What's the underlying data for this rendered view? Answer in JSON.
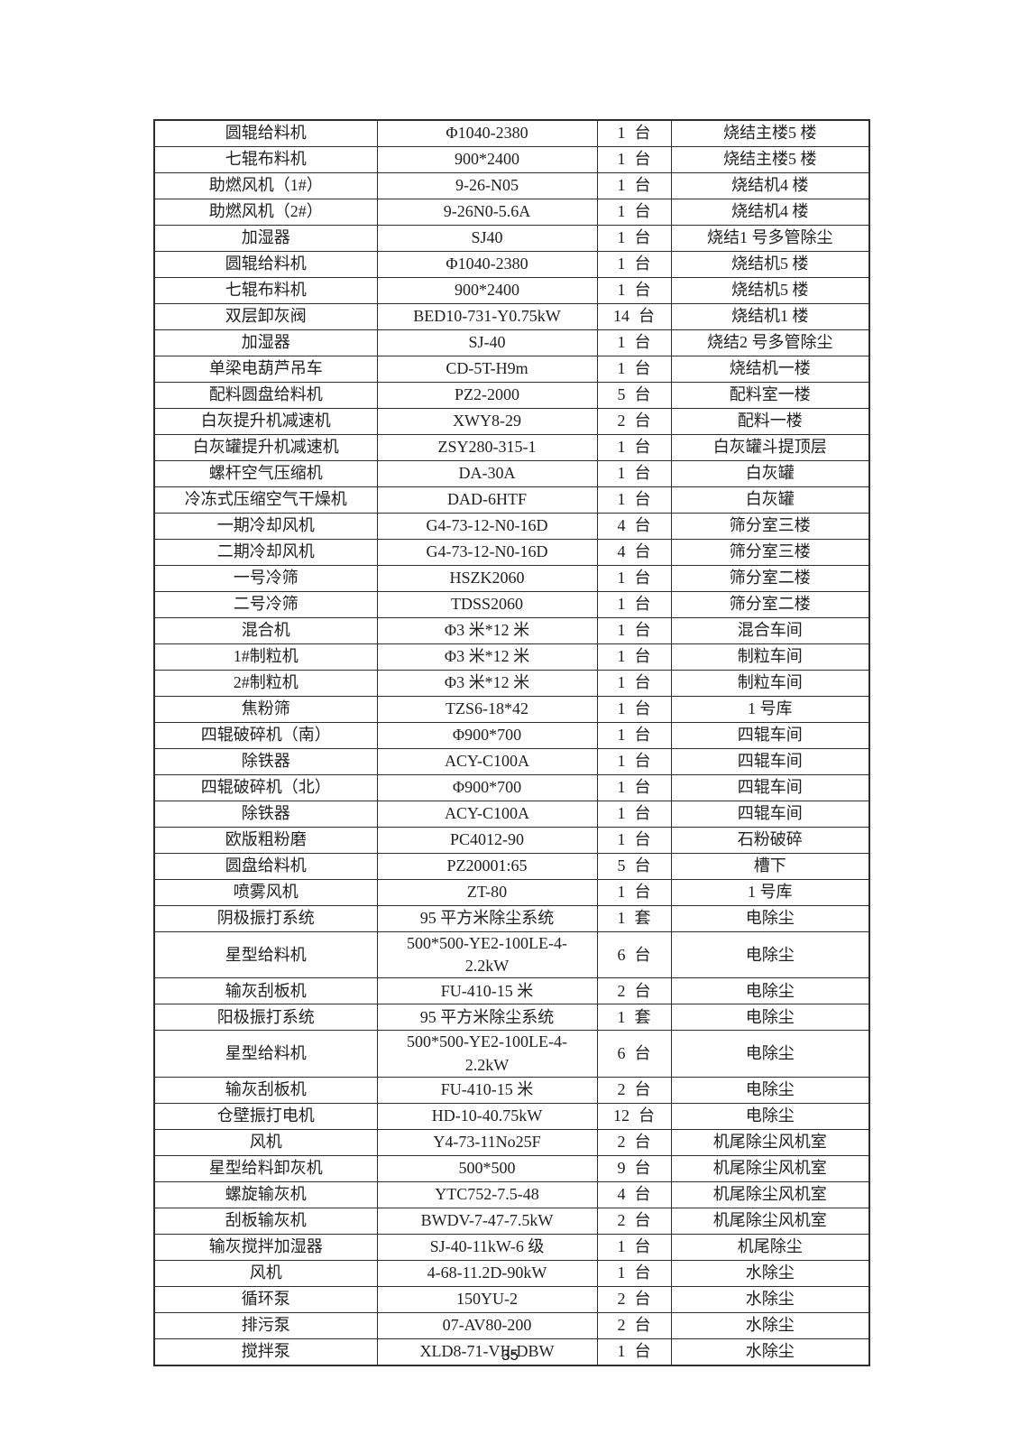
{
  "page": {
    "number": "35"
  },
  "table": {
    "rows": [
      {
        "name": "圆辊给料机",
        "model": "Φ1040-2380",
        "qty": "1",
        "unit": "台",
        "location": "烧结主楼5 楼"
      },
      {
        "name": "七辊布料机",
        "model": "900*2400",
        "qty": "1",
        "unit": "台",
        "location": "烧结主楼5 楼"
      },
      {
        "name": "助燃风机（1#）",
        "model": "9-26-N05",
        "qty": "1",
        "unit": "台",
        "location": "烧结机4 楼"
      },
      {
        "name": "助燃风机（2#）",
        "model": "9-26N0-5.6A",
        "qty": "1",
        "unit": "台",
        "location": "烧结机4 楼"
      },
      {
        "name": "加湿器",
        "model": "SJ40",
        "qty": "1",
        "unit": "台",
        "location": "烧结1 号多管除尘"
      },
      {
        "name": "圆辊给料机",
        "model": "Φ1040-2380",
        "qty": "1",
        "unit": "台",
        "location": "烧结机5 楼"
      },
      {
        "name": "七辊布料机",
        "model": "900*2400",
        "qty": "1",
        "unit": "台",
        "location": "烧结机5 楼"
      },
      {
        "name": "双层卸灰阀",
        "model": "BED10-731-Y0.75kW",
        "qty": "14",
        "unit": "台",
        "location": "烧结机1 楼"
      },
      {
        "name": "加湿器",
        "model": "SJ-40",
        "qty": "1",
        "unit": "台",
        "location": "烧结2 号多管除尘"
      },
      {
        "name": "单梁电葫芦吊车",
        "model": "CD-5T-H9m",
        "qty": "1",
        "unit": "台",
        "location": "烧结机一楼"
      },
      {
        "name": "配料圆盘给料机",
        "model": "PZ2-2000",
        "qty": "5",
        "unit": "台",
        "location": "配料室一楼"
      },
      {
        "name": "白灰提升机减速机",
        "model": "XWY8-29",
        "qty": "2",
        "unit": "台",
        "location": "配料一楼"
      },
      {
        "name": "白灰罐提升机减速机",
        "model": "ZSY280-315-1",
        "qty": "1",
        "unit": "台",
        "location": "白灰罐斗提顶层"
      },
      {
        "name": "螺杆空气压缩机",
        "model": "DA-30A",
        "qty": "1",
        "unit": "台",
        "location": "白灰罐"
      },
      {
        "name": "冷冻式压缩空气干燥机",
        "model": "DAD-6HTF",
        "qty": "1",
        "unit": "台",
        "location": "白灰罐"
      },
      {
        "name": "一期冷却风机",
        "model": "G4-73-12-N0-16D",
        "qty": "4",
        "unit": "台",
        "location": "筛分室三楼"
      },
      {
        "name": "二期冷却风机",
        "model": "G4-73-12-N0-16D",
        "qty": "4",
        "unit": "台",
        "location": "筛分室三楼"
      },
      {
        "name": "一号冷筛",
        "model": "HSZK2060",
        "qty": "1",
        "unit": "台",
        "location": "筛分室二楼"
      },
      {
        "name": "二号冷筛",
        "model": "TDSS2060",
        "qty": "1",
        "unit": "台",
        "location": "筛分室二楼"
      },
      {
        "name": "混合机",
        "model": "Φ3 米*12 米",
        "qty": "1",
        "unit": "台",
        "location": "混合车间"
      },
      {
        "name": "1#制粒机",
        "model": "Φ3 米*12 米",
        "qty": "1",
        "unit": "台",
        "location": "制粒车间"
      },
      {
        "name": "2#制粒机",
        "model": "Φ3 米*12 米",
        "qty": "1",
        "unit": "台",
        "location": "制粒车间"
      },
      {
        "name": "焦粉筛",
        "model": "TZS6-18*42",
        "qty": "1",
        "unit": "台",
        "location": "1 号库"
      },
      {
        "name": "四辊破碎机（南）",
        "model": "Φ900*700",
        "qty": "1",
        "unit": "台",
        "location": "四辊车间"
      },
      {
        "name": "除铁器",
        "model": "ACY-C100A",
        "qty": "1",
        "unit": "台",
        "location": "四辊车间"
      },
      {
        "name": "四辊破碎机（北）",
        "model": "Φ900*700",
        "qty": "1",
        "unit": "台",
        "location": "四辊车间"
      },
      {
        "name": "除铁器",
        "model": "ACY-C100A",
        "qty": "1",
        "unit": "台",
        "location": "四辊车间"
      },
      {
        "name": "欧版粗粉磨",
        "model": "PC4012-90",
        "qty": "1",
        "unit": "台",
        "location": "石粉破碎"
      },
      {
        "name": "圆盘给料机",
        "model": "PZ20001:65",
        "qty": "5",
        "unit": "台",
        "location": "槽下"
      },
      {
        "name": "喷雾风机",
        "model": "ZT-80",
        "qty": "1",
        "unit": "台",
        "location": "1 号库"
      },
      {
        "name": "阴极振打系统",
        "model": "95 平方米除尘系统",
        "qty": "1",
        "unit": "套",
        "location": "电除尘"
      },
      {
        "name": "星型给料机",
        "model": "500*500-YE2-100LE-4-\n2.2kW",
        "qty": "6",
        "unit": "台",
        "location": "电除尘"
      },
      {
        "name": "输灰刮板机",
        "model": "FU-410-15 米",
        "qty": "2",
        "unit": "台",
        "location": "电除尘"
      },
      {
        "name": "阳极振打系统",
        "model": "95 平方米除尘系统",
        "qty": "1",
        "unit": "套",
        "location": "电除尘"
      },
      {
        "name": "星型给料机",
        "model": "500*500-YE2-100LE-4-\n2.2kW",
        "qty": "6",
        "unit": "台",
        "location": "电除尘"
      },
      {
        "name": "输灰刮板机",
        "model": "FU-410-15 米",
        "qty": "2",
        "unit": "台",
        "location": "电除尘"
      },
      {
        "name": "仓壁振打电机",
        "model": "HD-10-40.75kW",
        "qty": "12",
        "unit": "台",
        "location": "电除尘"
      },
      {
        "name": "风机",
        "model": "Y4-73-11No25F",
        "qty": "2",
        "unit": "台",
        "location": "机尾除尘风机室"
      },
      {
        "name": "星型给料卸灰机",
        "model": "500*500",
        "qty": "9",
        "unit": "台",
        "location": "机尾除尘风机室"
      },
      {
        "name": "螺旋输灰机",
        "model": "YTC752-7.5-48",
        "qty": "4",
        "unit": "台",
        "location": "机尾除尘风机室"
      },
      {
        "name": "刮板输灰机",
        "model": "BWDV-7-47-7.5kW",
        "qty": "2",
        "unit": "台",
        "location": "机尾除尘风机室"
      },
      {
        "name": "输灰搅拌加湿器",
        "model": "SJ-40-11kW-6 级",
        "qty": "1",
        "unit": "台",
        "location": "机尾除尘"
      },
      {
        "name": "风机",
        "model": "4-68-11.2D-90kW",
        "qty": "1",
        "unit": "台",
        "location": "水除尘"
      },
      {
        "name": "循环泵",
        "model": "150YU-2",
        "qty": "2",
        "unit": "台",
        "location": "水除尘"
      },
      {
        "name": "排污泵",
        "model": "07-AV80-200",
        "qty": "2",
        "unit": "台",
        "location": "水除尘"
      },
      {
        "name": "搅拌泵",
        "model": "XLD8-71-VII-DBW",
        "qty": "1",
        "unit": "台",
        "location": "水除尘"
      }
    ]
  }
}
